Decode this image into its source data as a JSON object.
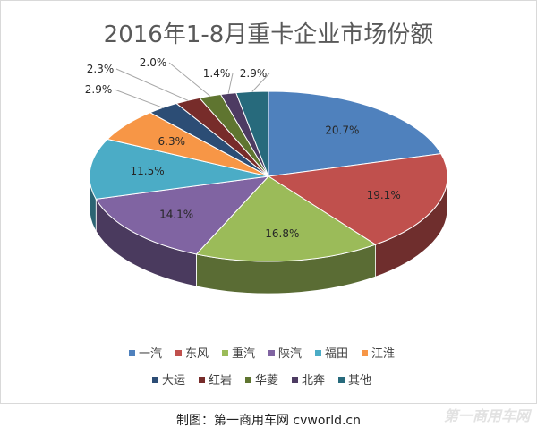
{
  "chart_data": {
    "type": "pie",
    "title": "2016年1-8月重卡企业市场份额",
    "unit": "%",
    "slices": [
      {
        "label": "一汽",
        "value": 20.7,
        "display": "20.7%",
        "color": "#4f81bd"
      },
      {
        "label": "东风",
        "value": 19.1,
        "display": "19.1%",
        "color": "#c0504d"
      },
      {
        "label": "重汽",
        "value": 16.8,
        "display": "16.8%",
        "color": "#9bbb59"
      },
      {
        "label": "陕汽",
        "value": 14.1,
        "display": "14.1%",
        "color": "#8064a2"
      },
      {
        "label": "福田",
        "value": 11.5,
        "display": "11.5%",
        "color": "#4bacc6"
      },
      {
        "label": "江淮",
        "value": 6.3,
        "display": "6.3%",
        "color": "#f79646"
      },
      {
        "label": "大运",
        "value": 2.9,
        "display": "2.9%",
        "color": "#2c4d75"
      },
      {
        "label": "红岩",
        "value": 2.3,
        "display": "2.3%",
        "color": "#772c2a"
      },
      {
        "label": "华菱",
        "value": 2.0,
        "display": "2.0%",
        "color": "#5f7530"
      },
      {
        "label": "北奔",
        "value": 1.4,
        "display": "1.4%",
        "color": "#4d3b62"
      },
      {
        "label": "其他",
        "value": 2.9,
        "display": "2.9%",
        "color": "#276a7c"
      }
    ],
    "legend": {
      "position": "bottom",
      "rows": 2
    }
  },
  "credit": "制图：第一商用车网  cvworld.cn",
  "watermark": "第一商用车网"
}
